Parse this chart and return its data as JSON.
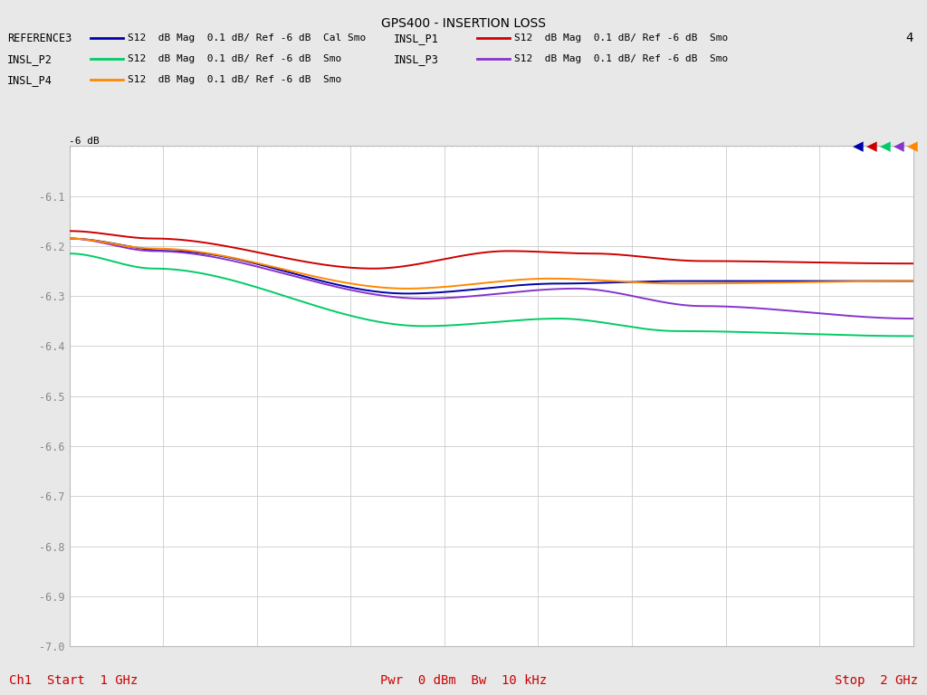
{
  "title": "GPS400 - INSERTION LOSS",
  "title_fontsize": 10,
  "background_color": "#e8e8e8",
  "plot_bg_color": "#ffffff",
  "xmin": 1.0,
  "xmax": 2.0,
  "ymin": -7.0,
  "ymax": -6.0,
  "ref_line_y": -6.0,
  "ref_label": "-6 dB",
  "bottom_left": "Ch1  Start  1 GHz",
  "bottom_center": "Pwr  0 dBm  Bw  10 kHz",
  "bottom_right": "Stop  2 GHz",
  "bottom_color": "#cc0000",
  "legend_entries": [
    {
      "label": "REFERENCE3",
      "desc": "S12  dB Mag  0.1 dB/ Ref -6 dB  Cal Smo",
      "color": "#0000aa"
    },
    {
      "label": "INSL_P1",
      "desc": "S12  dB Mag  0.1 dB/ Ref -6 dB  Smo",
      "color": "#cc0000"
    },
    {
      "label": "INSL_P2",
      "desc": "S12  dB Mag  0.1 dB/ Ref -6 dB  Smo",
      "color": "#00cc66"
    },
    {
      "label": "INSL_P3",
      "desc": "S12  dB Mag  0.1 dB/ Ref -6 dB  Smo",
      "color": "#8833cc"
    },
    {
      "label": "INSL_P4",
      "desc": "S12  dB Mag  0.1 dB/ Ref -6 dB  Smo",
      "color": "#ff8800"
    }
  ],
  "extra_label": "4",
  "marker_colors": [
    "#0000aa",
    "#cc0000",
    "#00cc66",
    "#8833cc",
    "#ff8800"
  ],
  "num_points": 401,
  "grid_color": "#cccccc",
  "spine_color": "#bbbbbb",
  "tick_color": "#888888"
}
